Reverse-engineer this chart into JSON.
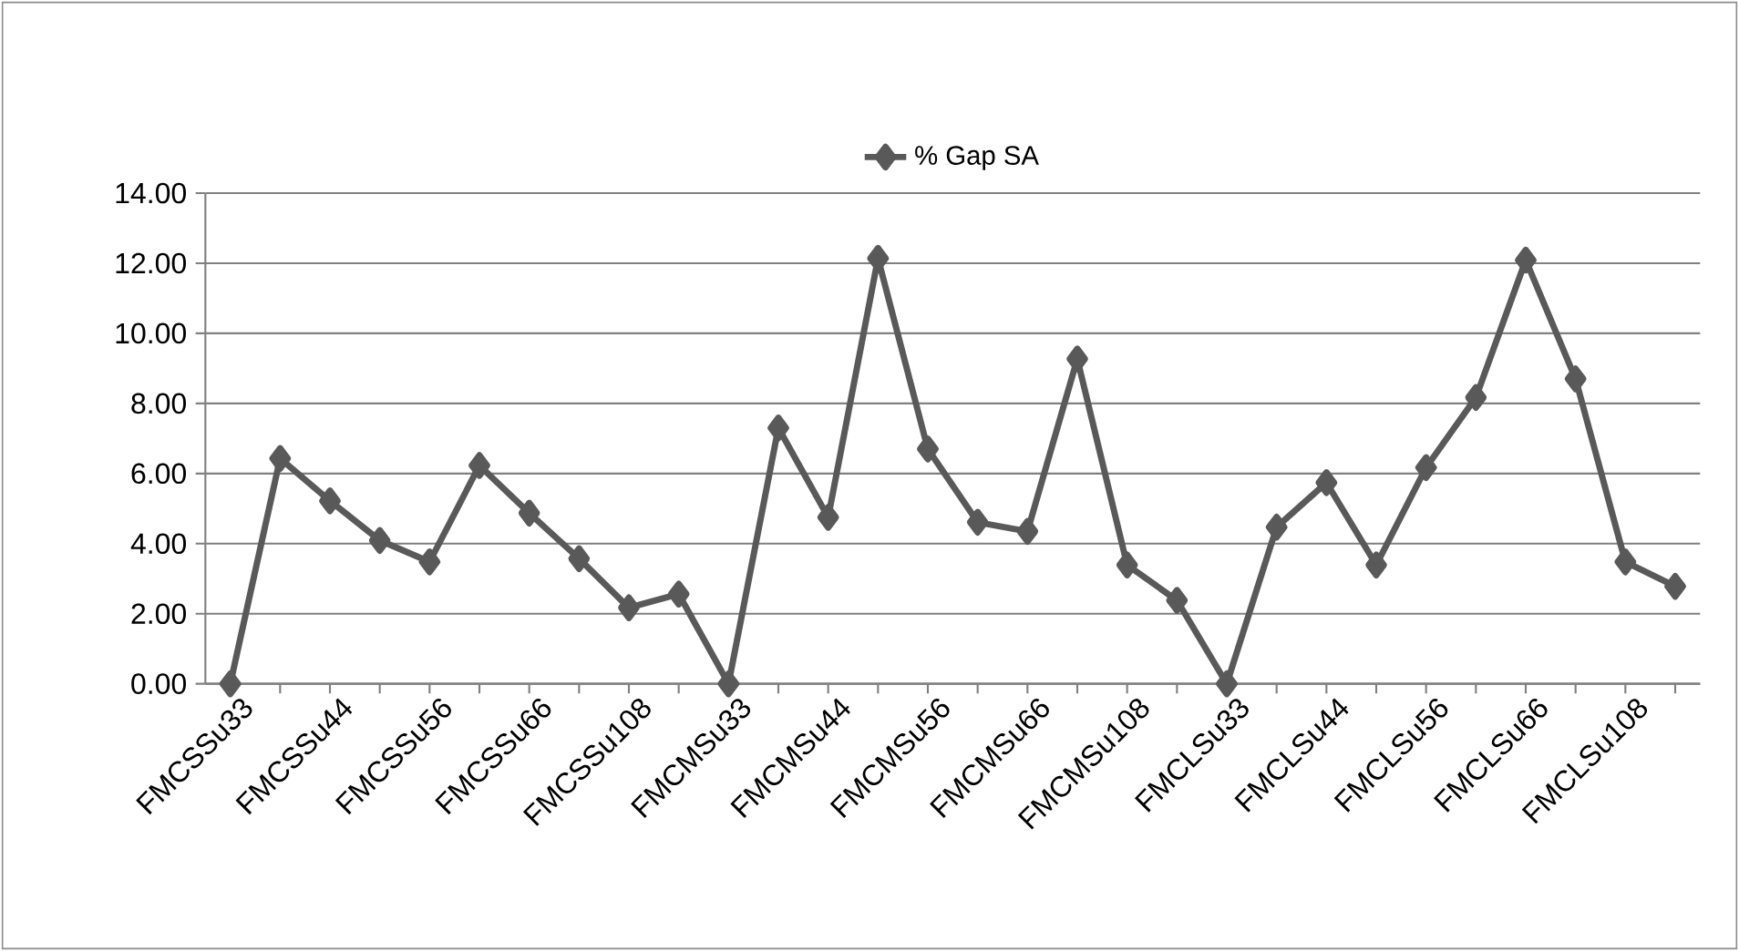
{
  "chart_data": {
    "type": "line",
    "categories": [
      "FMCSSu33",
      null,
      "FMCSSu44",
      null,
      "FMCSSu56",
      null,
      "FMCSSu66",
      null,
      "FMCSSu108",
      null,
      "FMCMSu33",
      null,
      "FMCMSu44",
      null,
      "FMCMSu56",
      null,
      "FMCMSu66",
      null,
      "FMCMSu108",
      null,
      "FMCLSu33",
      null,
      "FMCLSu44",
      null,
      "FMCLSu56",
      null,
      "FMCLSu66",
      null,
      "FMCLSu108",
      null
    ],
    "series": [
      {
        "name": "% Gap SA",
        "color": "#595959",
        "values": [
          0,
          6.43,
          5.22,
          4.09,
          3.48,
          6.23,
          4.87,
          3.57,
          2.17,
          2.56,
          0,
          7.3,
          4.75,
          12.14,
          6.7,
          4.61,
          4.35,
          9.27,
          3.39,
          2.38,
          0,
          4.47,
          5.74,
          3.39,
          6.17,
          8.17,
          12.09,
          8.7,
          3.48,
          2.78
        ]
      }
    ],
    "ylim": [
      0,
      14
    ],
    "yticks": [
      {
        "value": 0,
        "label": "0.00"
      },
      {
        "value": 2,
        "label": "2.00"
      },
      {
        "value": 4,
        "label": "4.00"
      },
      {
        "value": 6,
        "label": "6.00"
      },
      {
        "value": 8,
        "label": "8.00"
      },
      {
        "value": 10,
        "label": "10.00"
      },
      {
        "value": 12,
        "label": "12.00"
      },
      {
        "value": 14,
        "label": "14.00"
      }
    ],
    "grid": "y",
    "legend": "top",
    "marker": "diamond",
    "line_style": "solid"
  }
}
